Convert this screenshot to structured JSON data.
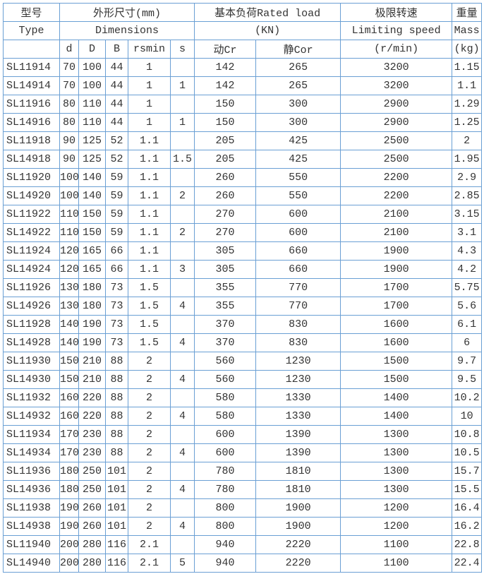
{
  "header": {
    "row1": [
      "型号",
      "外形尺寸(mm)",
      "基本负荷Rated load",
      "极限转速",
      "重量"
    ],
    "row2": [
      "Type",
      "Dimensions",
      "(KN)",
      "Limiting speed",
      "Mass"
    ],
    "row3": [
      "d",
      "D",
      "B",
      "rsmin",
      "s",
      "动Cr",
      "静Cor",
      "(r/min)",
      "(kg)"
    ]
  },
  "rows": [
    [
      "SL11914",
      "70",
      "100",
      "44",
      "1",
      null,
      "142",
      "265",
      "3200",
      "1.15"
    ],
    [
      "SL14914",
      "70",
      "100",
      "44",
      "1",
      "1",
      "142",
      "265",
      "3200",
      "1.1"
    ],
    [
      "SL11916",
      "80",
      "110",
      "44",
      "1",
      null,
      "150",
      "300",
      "2900",
      "1.29"
    ],
    [
      "SL14916",
      "80",
      "110",
      "44",
      "1",
      "1",
      "150",
      "300",
      "2900",
      "1.25"
    ],
    [
      "SL11918",
      "90",
      "125",
      "52",
      "1.1",
      null,
      "205",
      "425",
      "2500",
      "2"
    ],
    [
      "SL14918",
      "90",
      "125",
      "52",
      "1.1",
      "1.5",
      "205",
      "425",
      "2500",
      "1.95"
    ],
    [
      "SL11920",
      "100",
      "140",
      "59",
      "1.1",
      null,
      "260",
      "550",
      "2200",
      "2.9"
    ],
    [
      "SL14920",
      "100",
      "140",
      "59",
      "1.1",
      "2",
      "260",
      "550",
      "2200",
      "2.85"
    ],
    [
      "SL11922",
      "110",
      "150",
      "59",
      "1.1",
      null,
      "270",
      "600",
      "2100",
      "3.15"
    ],
    [
      "SL14922",
      "110",
      "150",
      "59",
      "1.1",
      "2",
      "270",
      "600",
      "2100",
      "3.1"
    ],
    [
      "SL11924",
      "120",
      "165",
      "66",
      "1.1",
      null,
      "305",
      "660",
      "1900",
      "4.3"
    ],
    [
      "SL14924",
      "120",
      "165",
      "66",
      "1.1",
      "3",
      "305",
      "660",
      "1900",
      "4.2"
    ],
    [
      "SL11926",
      "130",
      "180",
      "73",
      "1.5",
      null,
      "355",
      "770",
      "1700",
      "5.75"
    ],
    [
      "SL14926",
      "130",
      "180",
      "73",
      "1.5",
      "4",
      "355",
      "770",
      "1700",
      "5.6"
    ],
    [
      "SL11928",
      "140",
      "190",
      "73",
      "1.5",
      null,
      "370",
      "830",
      "1600",
      "6.1"
    ],
    [
      "SL14928",
      "140",
      "190",
      "73",
      "1.5",
      "4",
      "370",
      "830",
      "1600",
      "6"
    ],
    [
      "SL11930",
      "150",
      "210",
      "88",
      "2",
      null,
      "560",
      "1230",
      "1500",
      "9.7"
    ],
    [
      "SL14930",
      "150",
      "210",
      "88",
      "2",
      "4",
      "560",
      "1230",
      "1500",
      "9.5"
    ],
    [
      "SL11932",
      "160",
      "220",
      "88",
      "2",
      null,
      "580",
      "1330",
      "1400",
      "10.2"
    ],
    [
      "SL14932",
      "160",
      "220",
      "88",
      "2",
      "4",
      "580",
      "1330",
      "1400",
      "10"
    ],
    [
      "SL11934",
      "170",
      "230",
      "88",
      "2",
      null,
      "600",
      "1390",
      "1300",
      "10.8"
    ],
    [
      "SL14934",
      "170",
      "230",
      "88",
      "2",
      "4",
      "600",
      "1390",
      "1300",
      "10.5"
    ],
    [
      "SL11936",
      "180",
      "250",
      "101",
      "2",
      null,
      "780",
      "1810",
      "1300",
      "15.7"
    ],
    [
      "SL14936",
      "180",
      "250",
      "101",
      "2",
      "4",
      "780",
      "1810",
      "1300",
      "15.5"
    ],
    [
      "SL11938",
      "190",
      "260",
      "101",
      "2",
      null,
      "800",
      "1900",
      "1200",
      "16.4"
    ],
    [
      "SL14938",
      "190",
      "260",
      "101",
      "2",
      "4",
      "800",
      "1900",
      "1200",
      "16.2"
    ],
    [
      "SL11940",
      "200",
      "280",
      "116",
      "2.1",
      null,
      "940",
      "2220",
      "1100",
      "22.8"
    ],
    [
      "SL14940",
      "200",
      "280",
      "116",
      "2.1",
      "5",
      "940",
      "2220",
      "1100",
      "22.4"
    ]
  ]
}
